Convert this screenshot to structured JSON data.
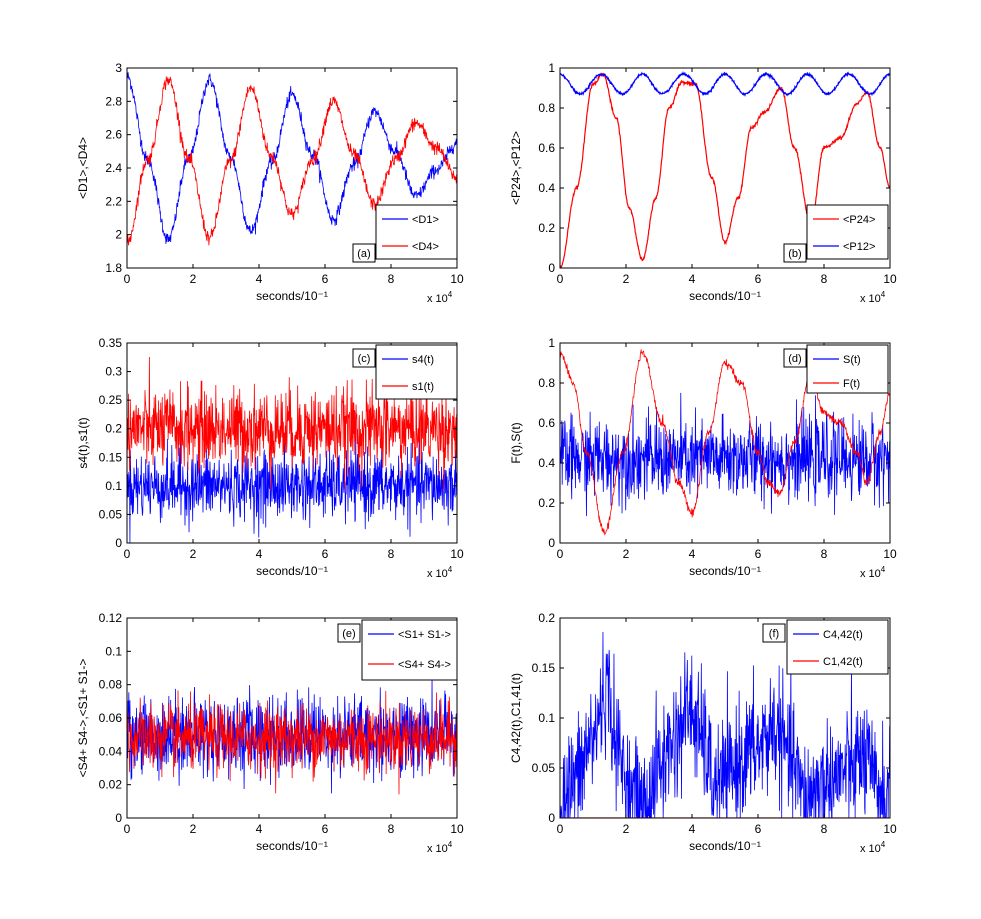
{
  "chart_data": [
    {
      "id": "a",
      "type": "line",
      "panel_label": "(a)",
      "xlabel": "seconds/10^-1",
      "x_multiplier": "x 10^4",
      "ylabel": "<D1>,<D4>",
      "xlim": [
        0,
        10
      ],
      "ylim": [
        1.8,
        3
      ],
      "xticks": [
        "0",
        "2",
        "4",
        "6",
        "8",
        "10"
      ],
      "yticks": [
        "1.8",
        "2",
        "2.2",
        "2.4",
        "2.6",
        "2.8",
        "3"
      ],
      "legend_position": "bottom-right",
      "series": [
        {
          "name": "<D1>",
          "color": "#0000ff",
          "noise": 0.02,
          "x": [
            0,
            0.625,
            1.25,
            1.875,
            2.5,
            3.125,
            3.75,
            4.375,
            5,
            5.625,
            6.25,
            6.875,
            7.5,
            8.125,
            8.75,
            9.375,
            10
          ],
          "y": [
            2.95,
            2.45,
            1.97,
            2.46,
            2.93,
            2.47,
            2.02,
            2.43,
            2.84,
            2.48,
            2.09,
            2.42,
            2.74,
            2.5,
            2.23,
            2.39,
            2.55
          ]
        },
        {
          "name": "<D4>",
          "color": "#ff0000",
          "noise": 0.02,
          "x": [
            0,
            0.625,
            1.25,
            1.875,
            2.5,
            3.125,
            3.75,
            4.375,
            5,
            5.625,
            6.25,
            6.875,
            7.5,
            8.125,
            8.75,
            9.375,
            10
          ],
          "y": [
            1.95,
            2.45,
            2.93,
            2.45,
            1.98,
            2.44,
            2.88,
            2.47,
            2.12,
            2.45,
            2.8,
            2.48,
            2.18,
            2.45,
            2.67,
            2.52,
            2.34
          ]
        }
      ]
    },
    {
      "id": "b",
      "type": "line",
      "panel_label": "(b)",
      "xlabel": "seconds/10^-1",
      "x_multiplier": "x 10^4",
      "ylabel": "<P24>,<P12>",
      "xlim": [
        0,
        10
      ],
      "ylim": [
        0,
        1
      ],
      "xticks": [
        "0",
        "2",
        "4",
        "6",
        "8",
        "10"
      ],
      "yticks": [
        "0",
        "0.2",
        "0.4",
        "0.6",
        "0.8",
        "1"
      ],
      "legend_position": "bottom-right",
      "series": [
        {
          "name": "<P24>",
          "color": "#ff0000",
          "noise": 0.004,
          "x": [
            0,
            0.5,
            1,
            1.3,
            1.7,
            2.1,
            2.5,
            2.9,
            3.3,
            3.7,
            4.1,
            4.6,
            5,
            5.4,
            5.8,
            6.2,
            6.7,
            7.1,
            7.6,
            8,
            8.5,
            9,
            9.3,
            9.7,
            10
          ],
          "y": [
            0,
            0.4,
            0.92,
            0.97,
            0.75,
            0.3,
            0.04,
            0.35,
            0.8,
            0.93,
            0.92,
            0.45,
            0.13,
            0.35,
            0.7,
            0.78,
            0.9,
            0.6,
            0.22,
            0.6,
            0.65,
            0.82,
            0.88,
            0.6,
            0.4
          ]
        },
        {
          "name": "<P12>",
          "color": "#0000ff",
          "noise": 0.003,
          "x": [
            0,
            0.6,
            1.25,
            1.9,
            2.5,
            3.1,
            3.75,
            4.4,
            5,
            5.6,
            6.25,
            6.9,
            7.5,
            8.1,
            8.75,
            9.4,
            10
          ],
          "y": [
            0.97,
            0.87,
            0.97,
            0.87,
            0.97,
            0.87,
            0.97,
            0.87,
            0.97,
            0.87,
            0.97,
            0.87,
            0.97,
            0.87,
            0.97,
            0.87,
            0.97
          ]
        }
      ]
    },
    {
      "id": "c",
      "type": "line",
      "panel_label": "(c)",
      "xlabel": "seconds/10^-1",
      "x_multiplier": "x 10^4",
      "ylabel": "s4(t),s1(t)",
      "xlim": [
        0,
        10
      ],
      "ylim": [
        0,
        0.35
      ],
      "xticks": [
        "0",
        "2",
        "4",
        "6",
        "8",
        "10"
      ],
      "yticks": [
        "0",
        "0.05",
        "0.1",
        "0.15",
        "0.2",
        "0.25",
        "0.3",
        "0.35"
      ],
      "legend_position": "top-right",
      "series": [
        {
          "name": "s4(t)",
          "color": "#0000ff",
          "noise": 0.03,
          "x": [
            0,
            1,
            2,
            3,
            4,
            5,
            6,
            7,
            8,
            9,
            10
          ],
          "y": [
            0.1,
            0.1,
            0.1,
            0.1,
            0.1,
            0.1,
            0.1,
            0.1,
            0.1,
            0.1,
            0.1
          ]
        },
        {
          "name": "s1(t)",
          "color": "#ff0000",
          "noise": 0.035,
          "x": [
            0,
            1,
            2,
            3,
            4,
            5,
            6,
            7,
            8,
            9,
            10
          ],
          "y": [
            0.2,
            0.2,
            0.2,
            0.2,
            0.2,
            0.2,
            0.2,
            0.2,
            0.2,
            0.2,
            0.2
          ]
        }
      ]
    },
    {
      "id": "d",
      "type": "line",
      "panel_label": "(d)",
      "xlabel": "seconds/10^-1",
      "x_multiplier": "x 10^4",
      "ylabel": "F(t),S(t)",
      "xlim": [
        0,
        10
      ],
      "ylim": [
        0,
        1
      ],
      "xticks": [
        "0",
        "2",
        "4",
        "6",
        "8",
        "10"
      ],
      "yticks": [
        "0",
        "0.2",
        "0.4",
        "0.6",
        "0.8",
        "1"
      ],
      "legend_position": "top-right",
      "series": [
        {
          "name": "S(t)",
          "color": "#0000ff",
          "noise": 0.1,
          "x": [
            0,
            1,
            2,
            3,
            4,
            5,
            6,
            7,
            8,
            9,
            10
          ],
          "y": [
            0.42,
            0.42,
            0.42,
            0.42,
            0.42,
            0.42,
            0.42,
            0.42,
            0.42,
            0.42,
            0.42
          ]
        },
        {
          "name": "F(t)",
          "color": "#ff0000",
          "noise": 0.01,
          "x": [
            0,
            0.4,
            0.8,
            1.35,
            1.9,
            2.5,
            3.1,
            3.6,
            4,
            4.5,
            5,
            5.5,
            6,
            6.3,
            6.65,
            7.1,
            7.6,
            8,
            8.5,
            9,
            9.3,
            9.7,
            10
          ],
          "y": [
            0.95,
            0.8,
            0.45,
            0.05,
            0.45,
            0.95,
            0.6,
            0.3,
            0.15,
            0.55,
            0.9,
            0.8,
            0.45,
            0.3,
            0.25,
            0.5,
            0.85,
            0.65,
            0.6,
            0.45,
            0.3,
            0.55,
            0.75
          ]
        }
      ]
    },
    {
      "id": "e",
      "type": "line",
      "panel_label": "(e)",
      "xlabel": "seconds/10^-1",
      "x_multiplier": "x 10^4",
      "ylabel": "<S4+ S4->,<S1+ S1->",
      "xlim": [
        0,
        10
      ],
      "ylim": [
        0,
        0.12
      ],
      "xticks": [
        "0",
        "2",
        "4",
        "6",
        "8",
        "10"
      ],
      "yticks": [
        "0",
        "0.02",
        "0.04",
        "0.06",
        "0.08",
        "0.1",
        "0.12"
      ],
      "legend_position": "top-right",
      "series": [
        {
          "name": "<S1+ S1->",
          "color": "#0000ff",
          "noise": 0.012,
          "x": [
            0,
            1,
            2,
            3,
            4,
            5,
            6,
            7,
            8,
            9,
            10
          ],
          "y": [
            0.05,
            0.05,
            0.05,
            0.05,
            0.05,
            0.05,
            0.05,
            0.05,
            0.05,
            0.05,
            0.05
          ]
        },
        {
          "name": "<S4+ S4->",
          "color": "#ff0000",
          "noise": 0.01,
          "x": [
            0,
            1,
            2,
            3,
            4,
            5,
            6,
            7,
            8,
            9,
            10
          ],
          "y": [
            0.048,
            0.048,
            0.048,
            0.048,
            0.048,
            0.048,
            0.048,
            0.048,
            0.048,
            0.048,
            0.048
          ]
        }
      ]
    },
    {
      "id": "f",
      "type": "line",
      "panel_label": "(f)",
      "xlabel": "seconds/10^-1",
      "x_multiplier": "x 10^4",
      "ylabel": "C4,42(t),C1,41(t)",
      "xlim": [
        0,
        10
      ],
      "ylim": [
        0,
        0.2
      ],
      "xticks": [
        "0",
        "2",
        "4",
        "6",
        "8",
        "10"
      ],
      "yticks": [
        "0",
        "0.05",
        "0.1",
        "0.15",
        "0.2"
      ],
      "legend_position": "top-right",
      "series": [
        {
          "name": "C4,42(t)",
          "color": "#0000ff",
          "noise": 0.03,
          "clip_min": 0,
          "x": [
            0,
            0.5,
            1,
            1.4,
            1.8,
            2.2,
            2.6,
            3,
            3.5,
            3.9,
            4.3,
            4.7,
            5.1,
            5.5,
            6,
            6.5,
            7,
            7.4,
            7.8,
            8.3,
            8.8,
            9.2,
            9.6,
            10
          ],
          "y": [
            0.01,
            0.04,
            0.08,
            0.13,
            0.06,
            0.02,
            0.01,
            0.05,
            0.08,
            0.11,
            0.08,
            0.03,
            0.04,
            0.06,
            0.07,
            0.09,
            0.06,
            0.02,
            0.03,
            0.04,
            0.05,
            0.06,
            0.03,
            0.02
          ]
        },
        {
          "name": "C1,42(t)",
          "color": "#ff0000",
          "noise": 0,
          "x": [
            0,
            10
          ],
          "y": [
            0,
            0
          ]
        }
      ]
    }
  ]
}
